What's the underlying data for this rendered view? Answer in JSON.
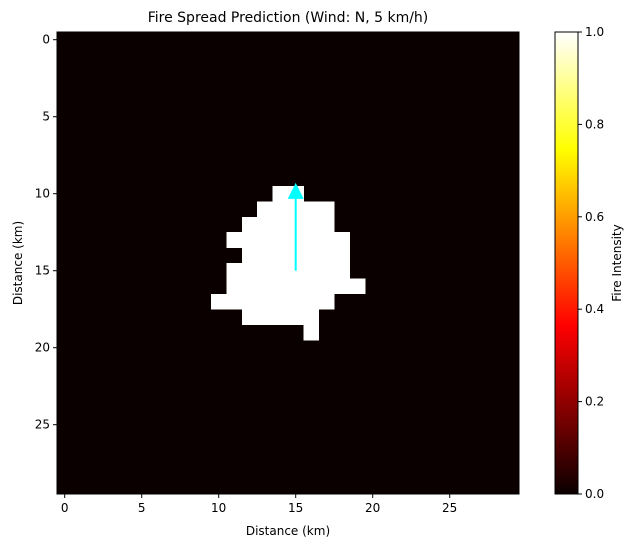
{
  "chart_data": {
    "type": "heatmap",
    "title": "Fire Spread Prediction (Wind: N, 5 km/h)",
    "xlabel": "Distance (km)",
    "ylabel": "Distance (km)",
    "grid_size": 30,
    "xlim": [
      -0.5,
      29.5
    ],
    "ylim": [
      29.5,
      -0.5
    ],
    "xticks": [
      0,
      5,
      10,
      15,
      20,
      25
    ],
    "yticks": [
      0,
      5,
      10,
      15,
      20,
      25
    ],
    "colormap": "hot",
    "colorbar": {
      "label": "Fire Intensity",
      "range": [
        0,
        1
      ],
      "ticks": [
        "0.0",
        "0.2",
        "0.4",
        "0.6",
        "0.8",
        "1.0"
      ]
    },
    "background_value": 0.0,
    "burning_value": 1.0,
    "burning_rows": [
      {
        "row": 10,
        "col_start": 14,
        "col_end": 15
      },
      {
        "row": 11,
        "col_start": 13,
        "col_end": 17
      },
      {
        "row": 12,
        "col_start": 12,
        "col_end": 17
      },
      {
        "row": 13,
        "col_start": 11,
        "col_end": 18
      },
      {
        "row": 14,
        "col_start": 12,
        "col_end": 18
      },
      {
        "row": 15,
        "col_start": 11,
        "col_end": 18
      },
      {
        "row": 16,
        "col_start": 11,
        "col_end": 19
      },
      {
        "row": 17,
        "col_start": 10,
        "col_end": 17
      },
      {
        "row": 18,
        "col_start": 12,
        "col_end": 16
      },
      {
        "row": 19,
        "col_start": 16,
        "col_end": 16
      }
    ],
    "wind_arrow": {
      "x": 15,
      "y_start": 15,
      "y_end": 9.3,
      "direction": "N",
      "color": "#00ffff"
    }
  }
}
